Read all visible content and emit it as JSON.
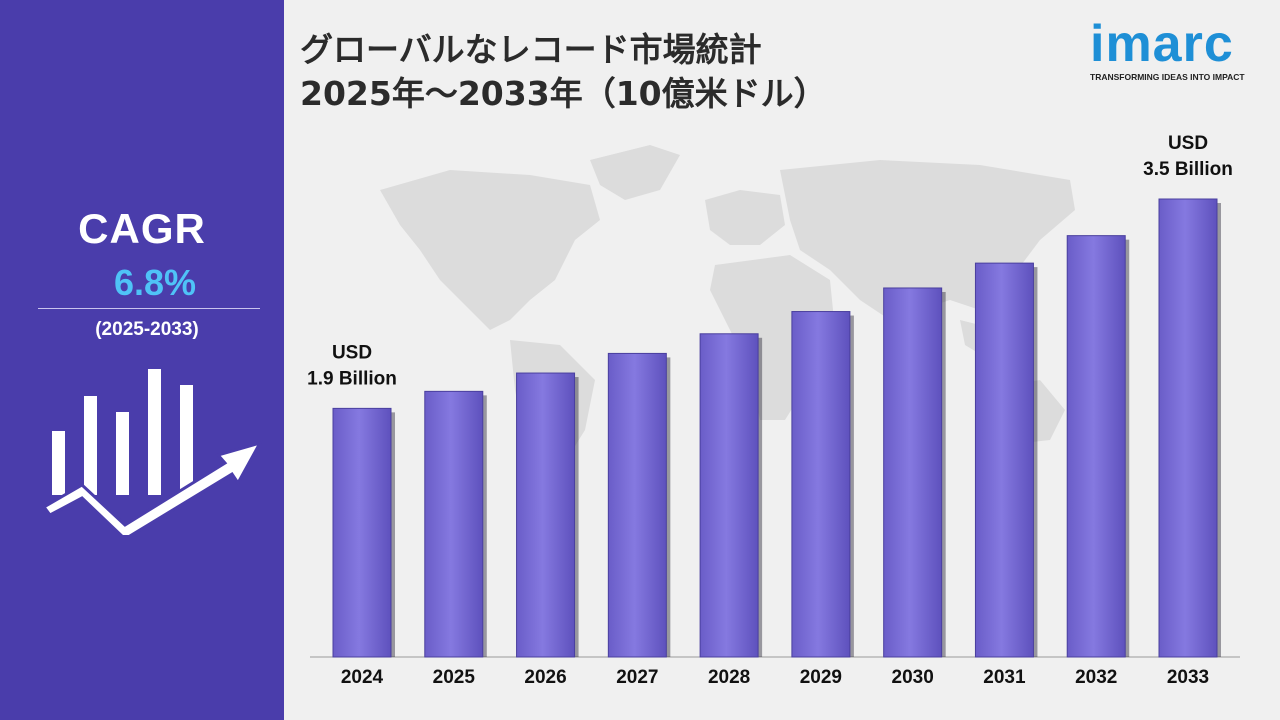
{
  "title": {
    "line1": "グローバルなレコード市場統計",
    "line2": "2025年～2033年（10億米ドル）"
  },
  "logo": {
    "word": "imarc",
    "tagline": "TRANSFORMING IDEAS INTO IMPACT"
  },
  "sidebar": {
    "cagr_label": "CAGR",
    "cagr_value": "6.8%",
    "period": "(2025-2033)",
    "icon": "bar-growth-arrow-icon"
  },
  "colors": {
    "sidebar": "#4a3dab",
    "bar": "#7b6fd6",
    "accent": "#4fc3f7",
    "logo": "#1e8fd6"
  },
  "chart_data": {
    "type": "bar",
    "categories": [
      "2024",
      "2025",
      "2026",
      "2027",
      "2028",
      "2029",
      "2030",
      "2031",
      "2032",
      "2033"
    ],
    "values": [
      1.9,
      2.03,
      2.17,
      2.32,
      2.47,
      2.64,
      2.82,
      3.01,
      3.22,
      3.5
    ],
    "title": "",
    "xlabel": "",
    "ylabel": "",
    "annotations": [
      {
        "category": "2024",
        "line1": "USD",
        "line2": "1.9 Billion"
      },
      {
        "category": "2033",
        "line1": "USD",
        "line2": "3.5 Billion"
      }
    ]
  }
}
